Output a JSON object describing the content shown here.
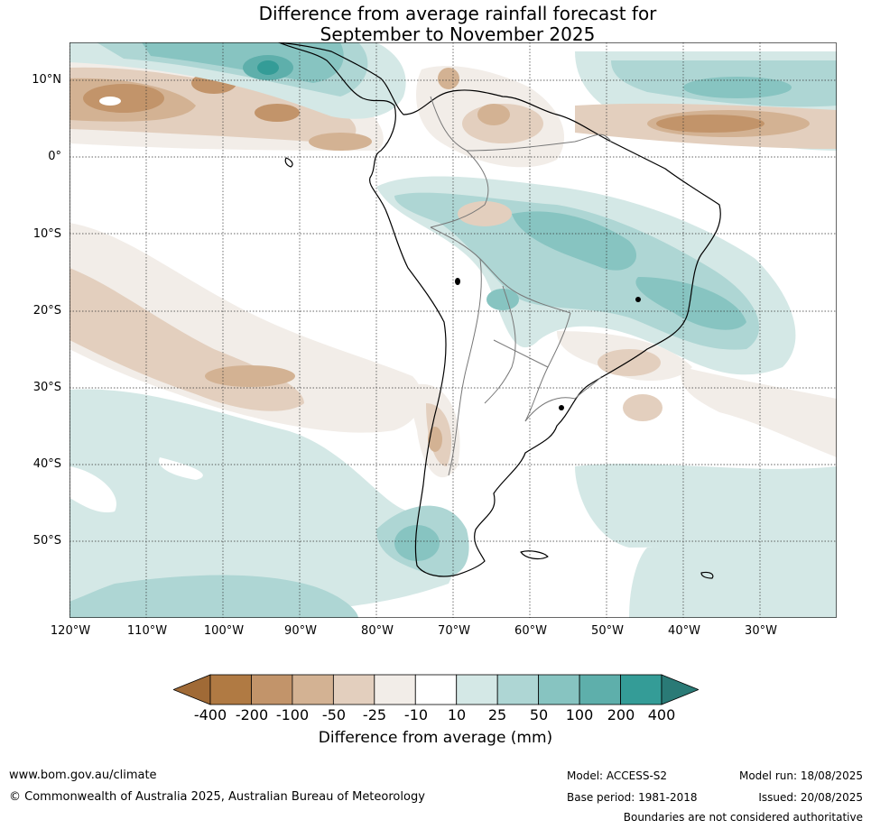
{
  "title": {
    "line1": "Difference from average rainfall forecast for",
    "line2": "September to November 2025"
  },
  "map": {
    "lat_labels": [
      "10°N",
      "0°",
      "10°S",
      "20°S",
      "30°S",
      "40°S",
      "50°S"
    ],
    "lon_labels": [
      "120°W",
      "110°W",
      "100°W",
      "90°W",
      "80°W",
      "70°W",
      "60°W",
      "50°W",
      "40°W",
      "30°W"
    ],
    "colors": {
      "dry_400": "#a06a36",
      "dry_200": "#b07a43",
      "dry_100": "#c2946a",
      "dry_50": "#d3b293",
      "dry_25": "#e3cfbe",
      "dry_10": "#f2ede8",
      "neutral": "#ffffff",
      "wet_10": "#d4e8e6",
      "wet_25": "#aed6d4",
      "wet_50": "#87c4c1",
      "wet_100": "#5eafab",
      "wet_200": "#349c97",
      "wet_400": "#2a7a76"
    }
  },
  "colorbar": {
    "labels": [
      "-400",
      "-200",
      "-100",
      "-50",
      "-25",
      "-10",
      "10",
      "25",
      "50",
      "100",
      "200",
      "400"
    ],
    "title": "Difference from average (mm)"
  },
  "footer": {
    "website": "www.bom.gov.au/climate",
    "copyright": "© Commonwealth of Australia 2025, Australian Bureau of Meteorology",
    "model": "Model: ACCESS-S2",
    "base_period": "Base period: 1981-2018",
    "model_run": "Model run: 18/08/2025",
    "issued": "Issued: 20/08/2025",
    "disclaimer": "Boundaries are not considered authoritative"
  }
}
